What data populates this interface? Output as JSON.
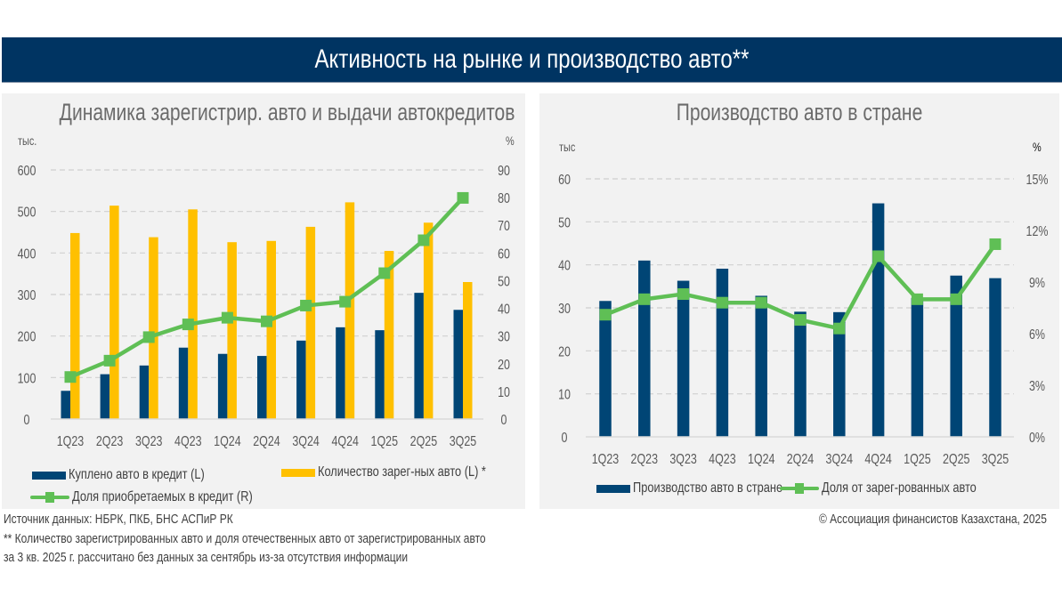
{
  "header": {
    "title": "Активность на рынке и производство авто**"
  },
  "colors": {
    "banner": "#003462",
    "navy": "#004575",
    "yellow": "#ffc000",
    "green": "#5fbf55"
  },
  "chart_data": [
    {
      "type": "bar",
      "title": "Динамика зарегистрир. авто и выдачи автокредитов",
      "left_unit": "тыс.",
      "right_unit": "%",
      "categories": [
        "1Q23",
        "2Q23",
        "3Q23",
        "4Q23",
        "1Q24",
        "2Q24",
        "3Q24",
        "4Q24",
        "1Q25",
        "2Q25",
        "3Q25"
      ],
      "ylim": [
        0,
        600
      ],
      "yticks": [
        "0",
        "100",
        "200",
        "300",
        "400",
        "500",
        "600"
      ],
      "y2lim": [
        0,
        90
      ],
      "y2ticks": [
        "0",
        "10",
        "20",
        "30",
        "40",
        "50",
        "60",
        "70",
        "80",
        "90"
      ],
      "grid": true,
      "legend_position": "bottom",
      "series": [
        {
          "name": "Куплено авто в кредит (L)",
          "type": "bar",
          "axis": "left",
          "color": "#004575",
          "values": [
            68,
            108,
            129,
            172,
            157,
            152,
            189,
            221,
            214,
            304,
            263
          ]
        },
        {
          "name": "Количество зарег-ных авто (L) *",
          "type": "bar",
          "axis": "left",
          "color": "#ffc000",
          "values": [
            448,
            514,
            438,
            505,
            426,
            429,
            463,
            522,
            405,
            473,
            330
          ]
        },
        {
          "name": "Доля приобретаемых в кредит (R)",
          "type": "line",
          "axis": "right",
          "color": "#5fbf55",
          "values": [
            15.2,
            21.1,
            29.6,
            34.2,
            36.6,
            35.3,
            41.0,
            42.4,
            52.7,
            64.6,
            79.9
          ]
        }
      ]
    },
    {
      "type": "bar",
      "title": "Производство авто в стране",
      "left_unit": "тыс",
      "right_unit": "%",
      "categories": [
        "1Q23",
        "2Q23",
        "3Q23",
        "4Q23",
        "1Q24",
        "2Q24",
        "3Q24",
        "4Q24",
        "1Q25",
        "2Q25",
        "3Q25"
      ],
      "ylim": [
        0,
        60
      ],
      "yticks": [
        "0",
        "10",
        "20",
        "30",
        "40",
        "50",
        "60"
      ],
      "y2lim": [
        0,
        15
      ],
      "y2ticks": [
        "0%",
        "3%",
        "6%",
        "9%",
        "12%",
        "15%"
      ],
      "grid": true,
      "legend_position": "bottom",
      "series": [
        {
          "name": "Производство авто в стране",
          "type": "bar",
          "axis": "left",
          "color": "#004575",
          "values": [
            31.6,
            41.0,
            36.3,
            39.1,
            32.8,
            29.1,
            29.0,
            54.3,
            32.3,
            37.5,
            36.9
          ]
        },
        {
          "name": "Доля от зарег-рованных авто",
          "type": "line",
          "axis": "right",
          "color": "#5fbf55",
          "values": [
            7.1,
            8.0,
            8.3,
            7.8,
            7.8,
            6.8,
            6.3,
            10.5,
            8.0,
            8.0,
            11.2
          ]
        }
      ]
    }
  ],
  "footer": {
    "source": "Источник данных: НБРК, ПКБ, БНС АСПиР РК",
    "note1": "** Количество зарегистрированных авто и  доля отечественных авто от зарегистрированных авто",
    "note2": "за 3 кв. 2025 г.   рассчитано без данных за сентябрь из-за отсутствия информации",
    "copyright": "© Ассоциация финансистов Казахстана, 2025"
  }
}
